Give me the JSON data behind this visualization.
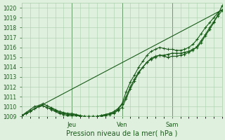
{
  "xlabel": "Pression niveau de la mer( hPa )",
  "ylim": [
    1009.0,
    1020.5
  ],
  "xlim": [
    0,
    96
  ],
  "yticks": [
    1009,
    1010,
    1011,
    1012,
    1013,
    1014,
    1015,
    1016,
    1017,
    1018,
    1019,
    1020
  ],
  "background_color": "#dff0df",
  "grid_color": "#aacfaa",
  "line_color": "#1a5c1a",
  "trend_x": [
    0,
    96
  ],
  "trend_y": [
    1009.1,
    1019.8
  ],
  "obs_x": [
    0,
    2,
    4,
    6,
    8,
    10,
    12,
    14,
    16,
    18,
    20,
    22,
    24,
    26,
    28,
    30,
    32,
    34,
    36,
    38,
    40,
    42,
    44,
    46,
    48,
    50,
    52,
    54,
    56,
    58,
    60,
    62,
    64,
    66,
    68,
    70,
    72,
    74,
    76,
    78,
    80,
    82,
    84,
    86,
    88,
    90,
    92,
    94,
    96
  ],
  "obs_y": [
    1009.1,
    1009.4,
    1009.7,
    1010.0,
    1010.1,
    1010.3,
    1010.1,
    1009.9,
    1009.7,
    1009.5,
    1009.4,
    1009.3,
    1009.3,
    1009.2,
    1009.1,
    1009.0,
    1009.0,
    1009.0,
    1009.0,
    1009.1,
    1009.2,
    1009.3,
    1009.4,
    1009.7,
    1010.2,
    1011.0,
    1012.0,
    1012.8,
    1013.5,
    1014.0,
    1014.5,
    1014.8,
    1015.0,
    1015.2,
    1015.2,
    1015.3,
    1015.4,
    1015.4,
    1015.4,
    1015.5,
    1015.6,
    1015.8,
    1016.0,
    1016.5,
    1017.2,
    1017.8,
    1018.5,
    1019.3,
    1020.2
  ],
  "fc_hi_x": [
    0,
    2,
    4,
    6,
    8,
    10,
    12,
    14,
    16,
    18,
    20,
    22,
    24,
    26,
    28,
    30,
    32,
    34,
    36,
    38,
    40,
    42,
    44,
    46,
    48,
    50,
    52,
    54,
    56,
    58,
    60,
    62,
    64,
    66,
    68,
    70,
    72,
    74,
    76,
    78,
    80,
    82,
    84,
    86,
    88,
    90,
    92,
    94,
    96
  ],
  "fc_hi_y": [
    1009.1,
    1009.3,
    1009.5,
    1009.8,
    1010.0,
    1010.1,
    1009.9,
    1009.8,
    1009.6,
    1009.4,
    1009.3,
    1009.2,
    1009.2,
    1009.2,
    1009.0,
    1009.0,
    1009.0,
    1009.0,
    1009.0,
    1009.1,
    1009.2,
    1009.3,
    1009.5,
    1009.8,
    1010.3,
    1011.5,
    1012.5,
    1013.2,
    1014.0,
    1014.6,
    1015.2,
    1015.6,
    1015.8,
    1016.0,
    1015.9,
    1015.8,
    1015.8,
    1015.7,
    1015.7,
    1015.8,
    1016.0,
    1016.3,
    1016.8,
    1017.4,
    1018.0,
    1018.5,
    1019.0,
    1019.5,
    1019.8
  ],
  "fc_lo_x": [
    0,
    2,
    4,
    6,
    8,
    10,
    12,
    14,
    16,
    18,
    20,
    22,
    24,
    26,
    28,
    30,
    32,
    34,
    36,
    38,
    40,
    42,
    44,
    46,
    48,
    50,
    52,
    54,
    56,
    58,
    60,
    62,
    64,
    66,
    68,
    70,
    72,
    74,
    76,
    78,
    80,
    82,
    84,
    86,
    88,
    90,
    92,
    94,
    96
  ],
  "fc_lo_y": [
    1009.1,
    1009.3,
    1009.5,
    1009.8,
    1010.0,
    1010.1,
    1009.9,
    1009.7,
    1009.5,
    1009.3,
    1009.2,
    1009.1,
    1009.1,
    1009.1,
    1009.0,
    1008.9,
    1008.9,
    1008.9,
    1009.0,
    1009.05,
    1009.1,
    1009.2,
    1009.3,
    1009.6,
    1009.9,
    1010.8,
    1011.8,
    1012.6,
    1013.4,
    1014.0,
    1014.5,
    1014.9,
    1015.1,
    1015.2,
    1015.1,
    1015.0,
    1015.1,
    1015.1,
    1015.2,
    1015.3,
    1015.5,
    1015.7,
    1016.1,
    1016.7,
    1017.3,
    1018.0,
    1018.6,
    1019.2,
    1019.7
  ]
}
